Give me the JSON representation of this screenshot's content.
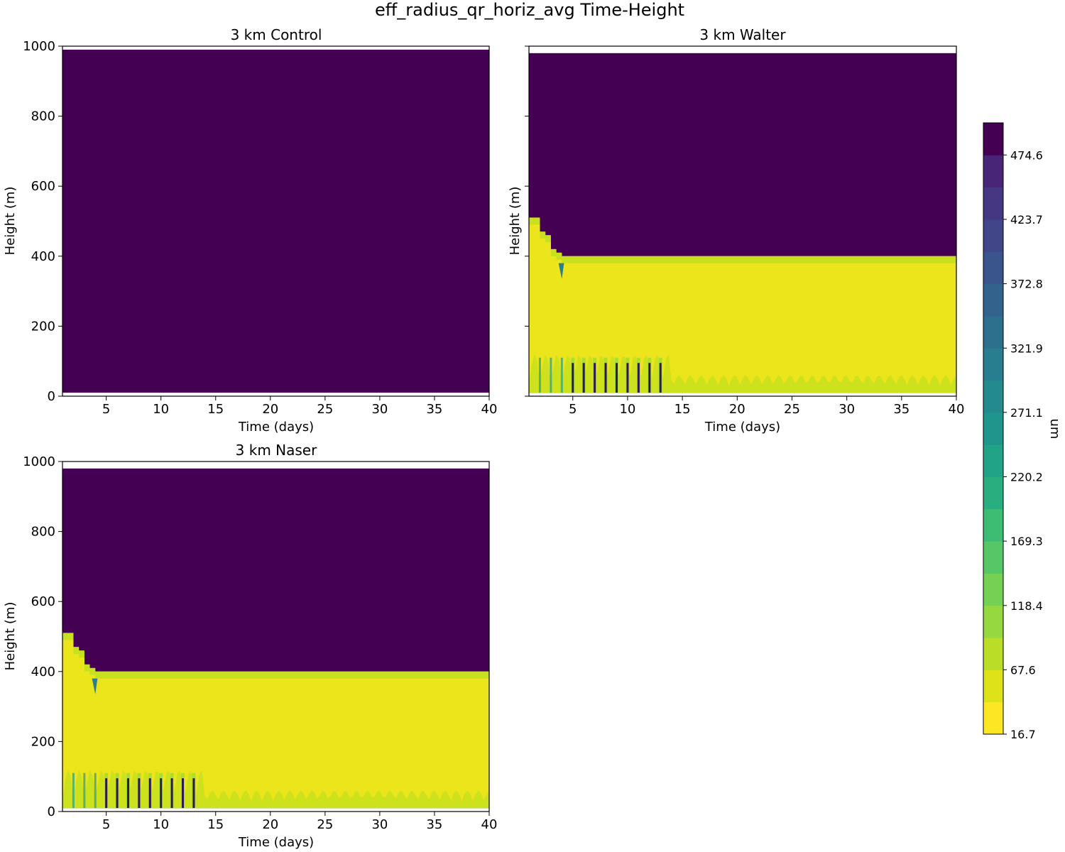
{
  "figure": {
    "title": "eff_radius_qr_horiz_avg Time-Height"
  },
  "colors": {
    "dark": "#440154",
    "low": "#ece51b",
    "low_noise": "#cde11d",
    "mid_noise": "#a5db36",
    "transition": [
      "#c7e020",
      "#75d054",
      "#35b779",
      "#1f9e89",
      "#26828e",
      "#31688e",
      "#3e4989",
      "#482878"
    ],
    "streak": "#2d1a55"
  },
  "colorbar": {
    "label": "um",
    "ticks": [
      16.7,
      67.6,
      118.4,
      169.3,
      220.2,
      271.1,
      321.9,
      372.8,
      423.7,
      474.6
    ],
    "tick_labels": [
      "16.7",
      "67.6",
      "118.4",
      "169.3",
      "220.2",
      "271.1",
      "321.9",
      "372.8",
      "423.7",
      "474.6"
    ],
    "min": 16.7,
    "max": 500.0,
    "levels": 19,
    "level_colors": [
      "#fde725",
      "#dde318",
      "#bade28",
      "#95d840",
      "#75d054",
      "#56c667",
      "#3dbc74",
      "#29af7f",
      "#20a386",
      "#1f968b",
      "#238a8d",
      "#287d8e",
      "#2d708e",
      "#33638d",
      "#39558c",
      "#404688",
      "#453781",
      "#482576",
      "#440154"
    ]
  },
  "chart_data": [
    {
      "type": "heatmap",
      "title": "3 km Control",
      "xlabel": "Time (days)",
      "ylabel": "Height (m)",
      "xlim": [
        1,
        40
      ],
      "ylim": [
        0,
        1000
      ],
      "xticks": [
        5,
        10,
        15,
        20,
        25,
        30,
        35,
        40
      ],
      "yticks": [
        0,
        200,
        400,
        600,
        800,
        1000
      ],
      "show_ytick_labels": true,
      "data_top": 990,
      "data_bottom": 10,
      "layer_top": null,
      "description_values": {
        "upper": 500,
        "lower": 500
      }
    },
    {
      "type": "heatmap",
      "title": "3 km Walter",
      "xlabel": "Time (days)",
      "ylabel": "Height (m)",
      "xlim": [
        1,
        40
      ],
      "ylim": [
        0,
        1000
      ],
      "xticks": [
        5,
        10,
        15,
        20,
        25,
        30,
        35,
        40
      ],
      "yticks": [
        0,
        200,
        400,
        600,
        800,
        1000
      ],
      "show_ytick_labels": false,
      "data_top": 980,
      "data_bottom": 10,
      "layer_top": {
        "days": [
          1,
          1.5,
          2,
          2.5,
          3,
          3.5,
          4,
          40
        ],
        "heights": [
          490,
          490,
          450,
          440,
          400,
          390,
          380,
          380
        ]
      },
      "streak_days": [
        5,
        6,
        7,
        8,
        9,
        10,
        11,
        12,
        13
      ],
      "description_values": {
        "upper": 500,
        "lower": 16.7
      }
    },
    {
      "type": "heatmap",
      "title": "3 km Naser",
      "xlabel": "Time (days)",
      "ylabel": "Height (m)",
      "xlim": [
        1,
        40
      ],
      "ylim": [
        0,
        1000
      ],
      "xticks": [
        5,
        10,
        15,
        20,
        25,
        30,
        35,
        40
      ],
      "yticks": [
        0,
        200,
        400,
        600,
        800,
        1000
      ],
      "show_ytick_labels": true,
      "data_top": 980,
      "data_bottom": 10,
      "layer_top": {
        "days": [
          1,
          1.5,
          2,
          2.5,
          3,
          3.5,
          4,
          40
        ],
        "heights": [
          490,
          490,
          450,
          440,
          400,
          390,
          380,
          380
        ]
      },
      "streak_days": [
        5,
        6,
        7,
        8,
        9,
        10,
        11,
        12,
        13
      ],
      "description_values": {
        "upper": 500,
        "lower": 16.7
      }
    }
  ]
}
